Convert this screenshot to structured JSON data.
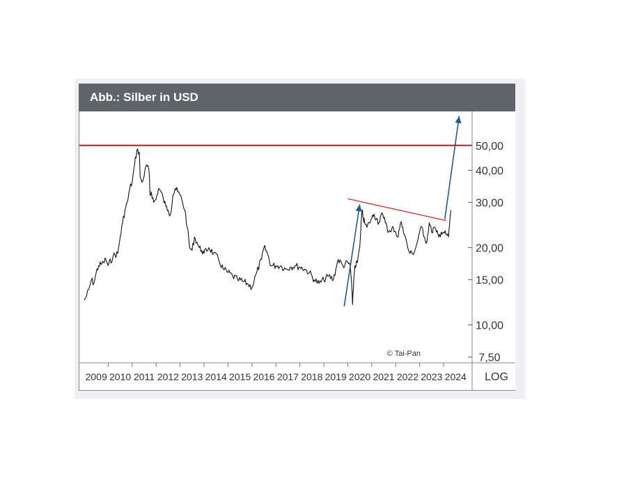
{
  "title": "Abb.: Silber in USD",
  "copyright": "© Tai-Pan",
  "colors": {
    "header_bg": "#5f6468",
    "price_line": "#111111",
    "resistance_line": "#b01e1e",
    "trend_line": "#d43030",
    "arrow": "#1c5aa0"
  },
  "chart_data": {
    "type": "line",
    "title": "Abb.: Silber in USD",
    "y_scale": "log",
    "y_scale_label": "LOG",
    "ylim": [
      7,
      75
    ],
    "xlim": [
      2009,
      2024.9
    ],
    "x_tick_labels": [
      "2009",
      "2010",
      "2011",
      "2012",
      "2013",
      "2014",
      "2015",
      "2016",
      "2017",
      "2018",
      "2019",
      "2020",
      "2021",
      "2022",
      "2023",
      "2024"
    ],
    "y_ticks": [
      50,
      40,
      30,
      20,
      15,
      10,
      7.5
    ],
    "y_tick_labels": [
      "50,00",
      "40,00",
      "30,00",
      "20,00",
      "15,00",
      "10,00",
      "7,50"
    ],
    "grid": false,
    "series": [
      {
        "x": [
          2009.0,
          2009.1,
          2009.2,
          2009.3,
          2009.4,
          2009.5,
          2009.6,
          2009.7,
          2009.8,
          2009.9,
          2010.0,
          2010.2,
          2010.4,
          2010.5,
          2010.6,
          2010.7,
          2010.8,
          2010.9,
          2011.0,
          2011.1,
          2011.2,
          2011.3,
          2011.33,
          2011.4,
          2011.5,
          2011.6,
          2011.7,
          2011.75,
          2011.8,
          2011.9,
          2012.0,
          2012.1,
          2012.2,
          2012.3,
          2012.4,
          2012.5,
          2012.6,
          2012.7,
          2012.8,
          2012.9,
          2013.0,
          2013.1,
          2013.2,
          2013.3,
          2013.4,
          2013.5,
          2013.6,
          2013.7,
          2013.8,
          2013.9,
          2014.0,
          2014.2,
          2014.4,
          2014.6,
          2014.8,
          2015.0,
          2015.2,
          2015.4,
          2015.6,
          2015.8,
          2016.0,
          2016.2,
          2016.4,
          2016.5,
          2016.6,
          2016.8,
          2017.0,
          2017.2,
          2017.4,
          2017.6,
          2017.8,
          2018.0,
          2018.2,
          2018.4,
          2018.6,
          2018.8,
          2019.0,
          2019.2,
          2019.4,
          2019.5,
          2019.6,
          2019.8,
          2020.0,
          2020.1,
          2020.15,
          2020.2,
          2020.25,
          2020.3,
          2020.4,
          2020.5,
          2020.6,
          2020.65,
          2020.7,
          2020.8,
          2020.9,
          2021.0,
          2021.1,
          2021.2,
          2021.3,
          2021.4,
          2021.5,
          2021.6,
          2021.7,
          2021.8,
          2021.9,
          2022.0,
          2022.1,
          2022.2,
          2022.3,
          2022.4,
          2022.5,
          2022.6,
          2022.7,
          2022.8,
          2022.9,
          2023.0,
          2023.1,
          2023.2,
          2023.3,
          2023.4,
          2023.5,
          2023.6,
          2023.7,
          2023.8,
          2023.9,
          2024.0,
          2024.1,
          2024.2,
          2024.25,
          2024.3
        ],
        "values": [
          12.5,
          13.0,
          13.8,
          15.0,
          14.5,
          16.0,
          17.0,
          17.2,
          17.5,
          18.0,
          17.0,
          18.5,
          19.0,
          22.0,
          25.0,
          28.0,
          30.0,
          34.0,
          36.0,
          42.0,
          48.0,
          47.0,
          38.0,
          36.0,
          38.0,
          42.0,
          40.0,
          32.0,
          33.0,
          30.0,
          31.0,
          34.0,
          33.0,
          31.0,
          29.0,
          28.0,
          27.0,
          32.0,
          34.0,
          33.0,
          32.0,
          30.0,
          28.0,
          24.0,
          20.0,
          19.5,
          22.0,
          21.0,
          20.0,
          19.5,
          19.0,
          20.0,
          19.0,
          18.0,
          16.5,
          16.0,
          15.5,
          15.0,
          14.8,
          14.5,
          14.0,
          16.0,
          18.0,
          20.0,
          19.5,
          17.0,
          17.0,
          17.0,
          16.5,
          16.8,
          17.0,
          16.8,
          16.5,
          16.0,
          15.0,
          14.5,
          15.0,
          15.5,
          15.0,
          16.5,
          18.0,
          17.0,
          17.5,
          17.0,
          15.0,
          12.0,
          15.0,
          17.0,
          17.5,
          20.0,
          28.0,
          26.0,
          25.0,
          24.0,
          25.0,
          26.0,
          27.0,
          26.0,
          25.0,
          27.0,
          26.0,
          25.0,
          23.0,
          23.0,
          24.0,
          23.0,
          22.0,
          25.0,
          24.0,
          22.0,
          20.0,
          19.0,
          19.0,
          19.5,
          21.0,
          23.0,
          24.0,
          22.0,
          21.0,
          25.0,
          23.0,
          24.0,
          23.0,
          22.0,
          23.0,
          23.0,
          22.5,
          22.0,
          24.5,
          28.0
        ]
      }
    ],
    "annotations": {
      "resistance_line_value": 50,
      "trend_line": {
        "x": [
          2020.0,
          2024.1
        ],
        "values": [
          31.0,
          25.5
        ]
      },
      "arrow_up_1": {
        "x": [
          2019.85,
          2020.5
        ],
        "values": [
          11.8,
          29.5
        ]
      },
      "arrow_up_2": {
        "x": [
          2024.05,
          2024.65
        ],
        "values": [
          25.8,
          65.0
        ]
      }
    }
  }
}
